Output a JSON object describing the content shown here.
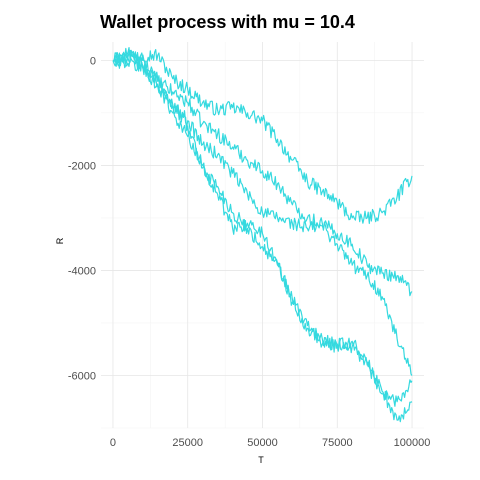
{
  "chart_data": {
    "type": "line",
    "title": "Wallet process with mu =  10.4",
    "xlabel": "T",
    "ylabel": "R",
    "xlim": [
      -4000,
      104000
    ],
    "ylim": [
      -7000,
      350
    ],
    "x_ticks": [
      0,
      25000,
      50000,
      75000,
      100000
    ],
    "x_tick_labels": [
      "0",
      "25000",
      "50000",
      "75000",
      "100000"
    ],
    "y_ticks": [
      0,
      -2000,
      -4000,
      -6000
    ],
    "y_tick_labels": [
      "0",
      "-2000",
      "-4000",
      "-6000"
    ],
    "grid": true,
    "legend": "none",
    "line_color": "#35d9df",
    "x": [
      0,
      5000,
      10000,
      15000,
      20000,
      25000,
      30000,
      35000,
      40000,
      45000,
      50000,
      55000,
      60000,
      65000,
      70000,
      75000,
      80000,
      85000,
      90000,
      95000,
      100000
    ],
    "series": [
      {
        "values": [
          0,
          50,
          100,
          100,
          -350,
          -550,
          -800,
          -950,
          -900,
          -1000,
          -1150,
          -1500,
          -1900,
          -2300,
          -2500,
          -2700,
          -3000,
          -3000,
          -2900,
          -2600,
          -2200
        ]
      },
      {
        "values": [
          0,
          150,
          0,
          -400,
          -600,
          -800,
          -1200,
          -1400,
          -1650,
          -1900,
          -2100,
          -2350,
          -2750,
          -3000,
          -3100,
          -3300,
          -3500,
          -3900,
          -4050,
          -4100,
          -4400
        ]
      },
      {
        "values": [
          0,
          100,
          -150,
          -500,
          -850,
          -1150,
          -1600,
          -1800,
          -2150,
          -2550,
          -2900,
          -3000,
          -3100,
          -3200,
          -3150,
          -3500,
          -3900,
          -4100,
          -4500,
          -5300,
          -6000
        ]
      },
      {
        "values": [
          0,
          -50,
          -150,
          -450,
          -1000,
          -1450,
          -2050,
          -2400,
          -2900,
          -3200,
          -3550,
          -3900,
          -4550,
          -5050,
          -5400,
          -5450,
          -5350,
          -5750,
          -6350,
          -6500,
          -6100
        ]
      },
      {
        "values": [
          0,
          50,
          -100,
          -350,
          -850,
          -1250,
          -2000,
          -2550,
          -3200,
          -3100,
          -3300,
          -3850,
          -4600,
          -5100,
          -5300,
          -5400,
          -5450,
          -5800,
          -6300,
          -6850,
          -6500
        ]
      }
    ]
  }
}
